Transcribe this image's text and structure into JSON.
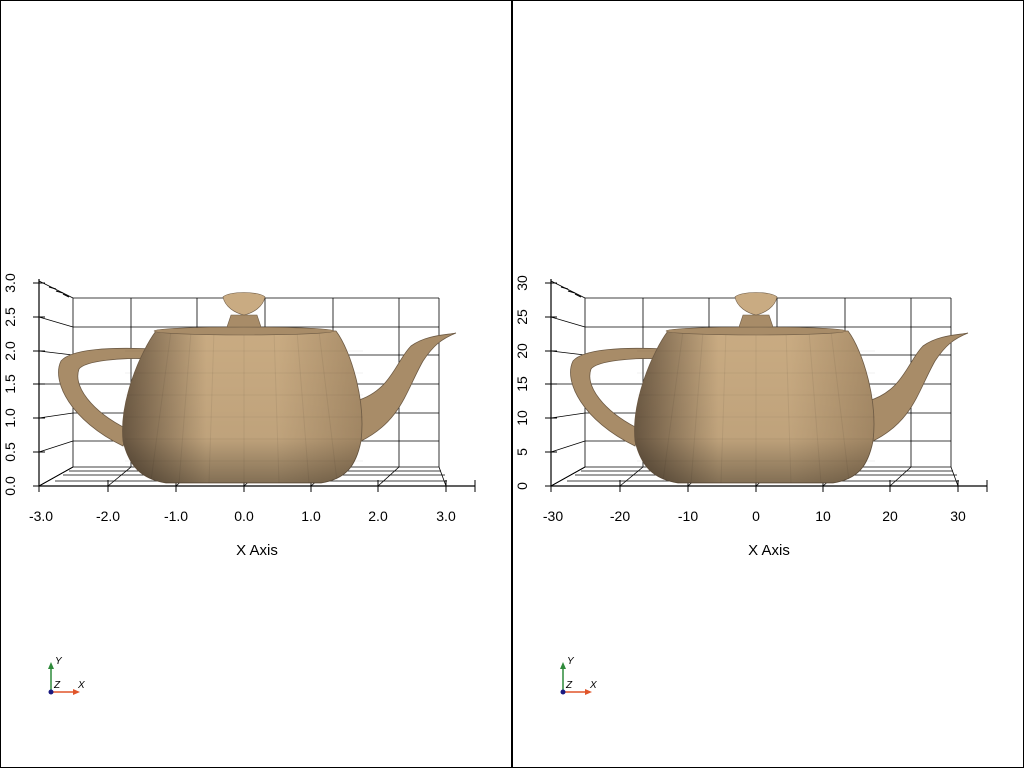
{
  "viewports": [
    {
      "x_ticks": [
        "-3.0",
        "-2.0",
        "-1.0",
        "0.0",
        "1.0",
        "2.0",
        "3.0"
      ],
      "y_ticks": [
        "0.0",
        "0.5",
        "1.0",
        "1.5",
        "2.0",
        "2.5",
        "3.0"
      ],
      "x_title": "X Axis",
      "orientation": {
        "y": "Y",
        "z": "Z",
        "x": "X"
      }
    },
    {
      "x_ticks": [
        "-30",
        "-20",
        "-10",
        "0",
        "10",
        "20",
        "30"
      ],
      "y_ticks": [
        "0",
        "5",
        "10",
        "15",
        "20",
        "25",
        "30"
      ],
      "x_title": "X Axis",
      "orientation": {
        "y": "Y",
        "z": "Z",
        "x": "X"
      }
    }
  ],
  "colors": {
    "teapot_light": "#c9ab82",
    "teapot_mid": "#a88c68",
    "teapot_dark": "#6d5a44",
    "grid": "#000000",
    "orient_x": "#e0552a",
    "orient_y": "#2e8a3a",
    "orient_z": "#1a1a80"
  }
}
